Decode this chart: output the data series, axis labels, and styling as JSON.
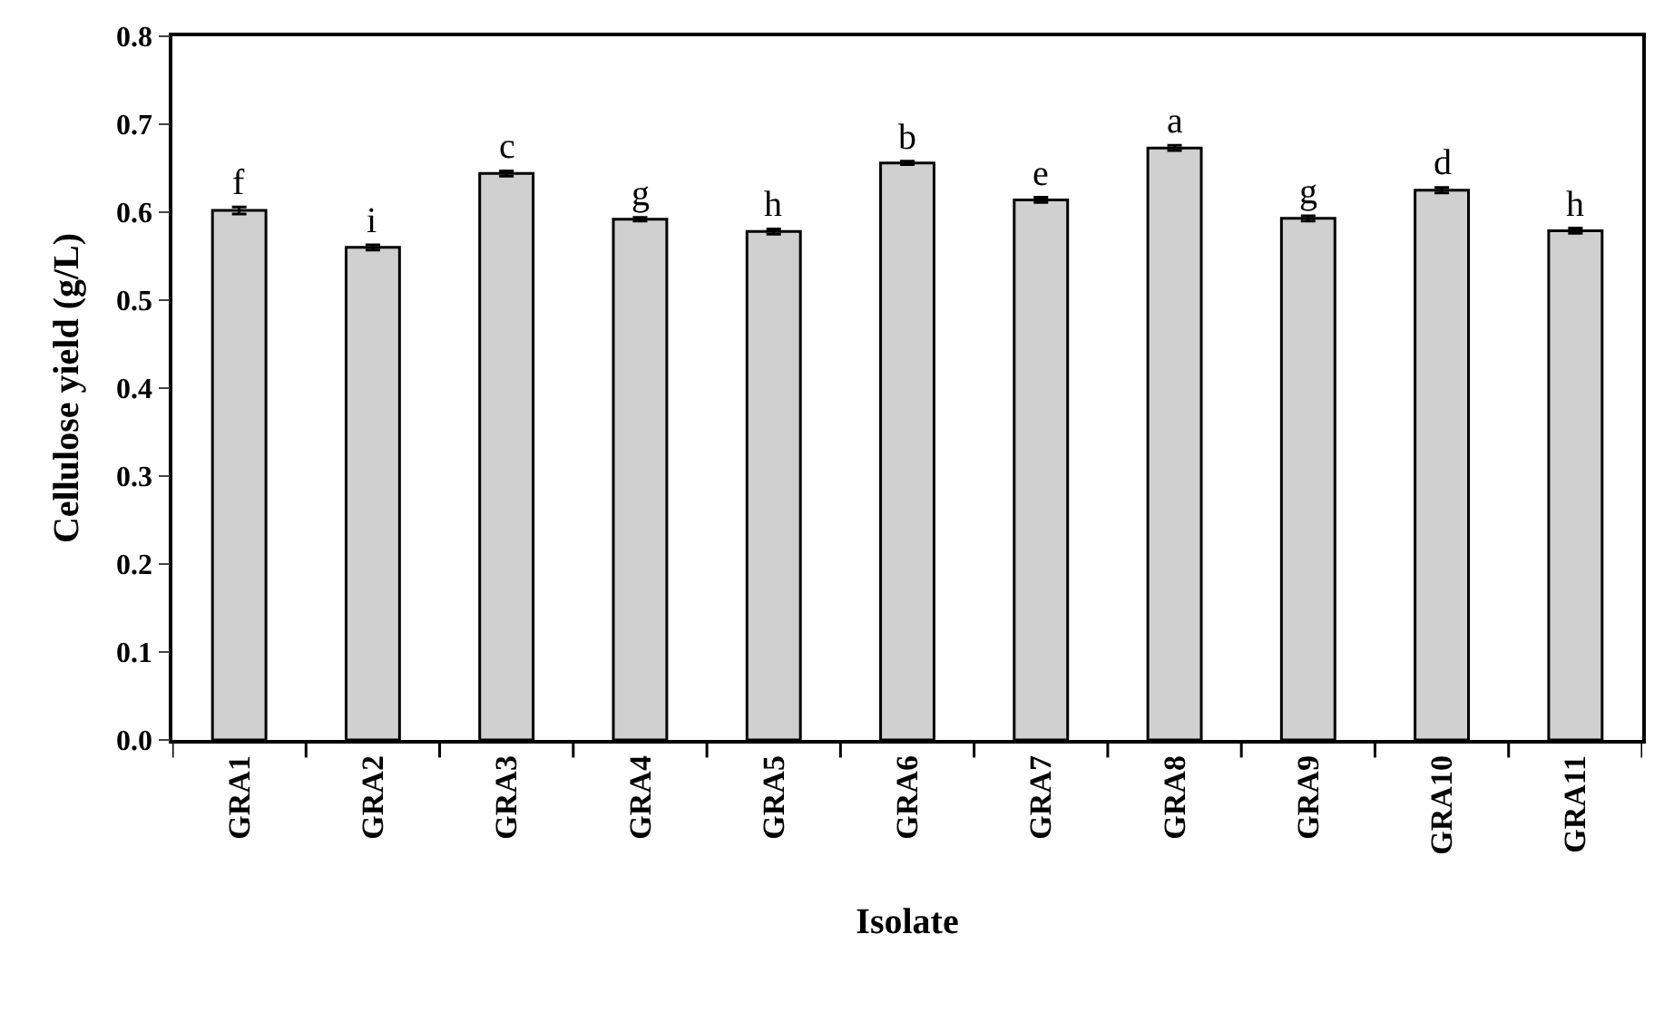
{
  "chart_data": {
    "type": "bar",
    "xlabel": "Isolate",
    "ylabel": "Cellulose yield (g/L)",
    "categories": [
      "GRA1",
      "GRA2",
      "GRA3",
      "GRA4",
      "GRA5",
      "GRA6",
      "GRA7",
      "GRA8",
      "GRA9",
      "GRA10",
      "GRA11"
    ],
    "values": [
      0.602,
      0.56,
      0.644,
      0.592,
      0.578,
      0.656,
      0.614,
      0.673,
      0.593,
      0.625,
      0.579
    ],
    "errors": [
      0.004,
      0.003,
      0.003,
      0.002,
      0.003,
      0.002,
      0.003,
      0.003,
      0.003,
      0.003,
      0.003
    ],
    "color": "#d0d0d0",
    "ylim": [
      0,
      0.8
    ],
    "yticks": [
      {
        "value": 0,
        "label": "0.0"
      },
      0.1,
      0.2,
      0.3,
      0.4,
      0.5,
      0.6,
      0.7,
      0.8
    ],
    "annotations": [
      {
        "text": "f",
        "x": "GRA1",
        "y": 0.606
      },
      {
        "text": "i",
        "x": "GRA2",
        "y": 0.563
      },
      {
        "text": "c",
        "x": "GRA3",
        "y": 0.647
      },
      {
        "text": "g",
        "x": "GRA4",
        "y": 0.594
      },
      {
        "text": "h",
        "x": "GRA5",
        "y": 0.581
      },
      {
        "text": "b",
        "x": "GRA6",
        "y": 0.658
      },
      {
        "text": "e",
        "x": "GRA7",
        "y": 0.617
      },
      {
        "text": "a",
        "x": "GRA8",
        "y": 0.676
      },
      {
        "text": "g",
        "x": "GRA9",
        "y": 0.596
      },
      {
        "text": "d",
        "x": "GRA10",
        "y": 0.628
      },
      {
        "text": "h",
        "x": "GRA11",
        "y": 0.582
      }
    ]
  }
}
